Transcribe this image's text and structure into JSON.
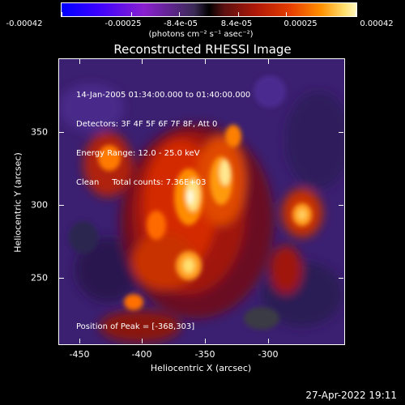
{
  "colorbar": {
    "ticks": [
      "-0.00042",
      "-0.00025",
      "-8.4e-05",
      "8.4e-05",
      "0.00025",
      "0.00042"
    ],
    "units": "(photons cm⁻² s⁻¹ asec⁻²)"
  },
  "title": "Reconstructed RHESSI Image",
  "info": {
    "time_range": "14-Jan-2005 01:34:00.000 to 01:40:00.000",
    "detectors": "Detectors: 3F 4F 5F 6F 7F 8F, Att 0",
    "energy": "Energy Range: 12.0 - 25.0 keV",
    "clean": "Clean     Total counts: 7.36E+03",
    "peak": "Position of Peak = [-368,303]"
  },
  "axes": {
    "xlabel": "Heliocentric X (arcsec)",
    "ylabel": "Heliocentric Y (arcsec)",
    "xticks": [
      "-450",
      "-400",
      "-350",
      "-300"
    ],
    "yticks": [
      "350",
      "300",
      "250"
    ]
  },
  "timestamp": "27-Apr-2022 19:11",
  "colors": {
    "background": "#000000",
    "foreground": "#ffffff",
    "map_base": "#3a1e6e"
  }
}
